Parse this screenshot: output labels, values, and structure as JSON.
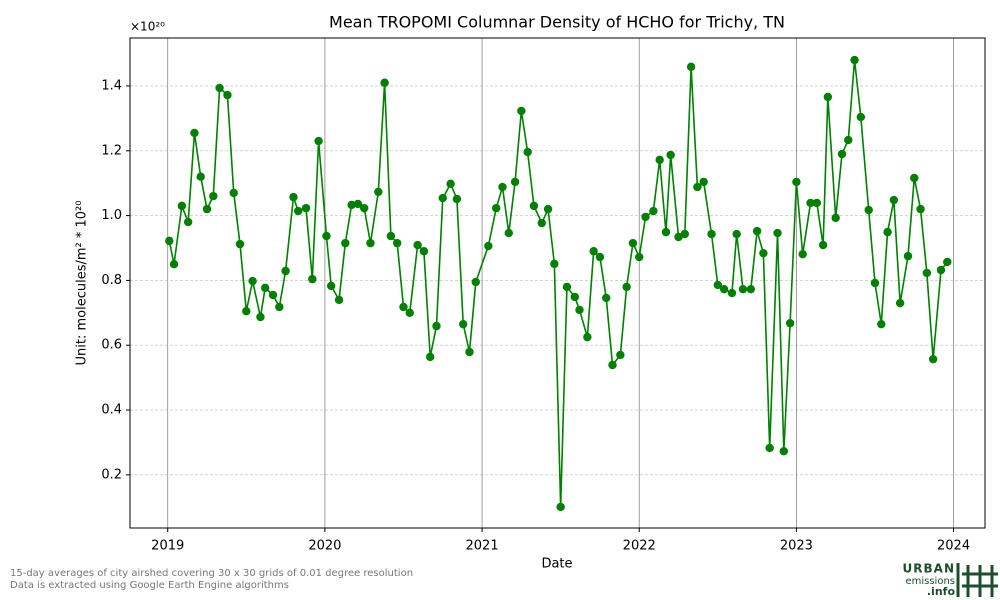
{
  "chart_data": {
    "type": "line",
    "title": "Mean TROPOMI Columnar Density of HCHO for Trichy, TN",
    "x_label": "Date",
    "y_label": "Unit: molecules/m² * 10²⁰",
    "y_offset_label": "×10²⁰",
    "color": "#008000",
    "grid": true,
    "x": [
      2019.01,
      2019.04,
      2019.09,
      2019.13,
      2019.17,
      2019.21,
      2019.25,
      2019.29,
      2019.33,
      2019.38,
      2019.42,
      2019.46,
      2019.5,
      2019.54,
      2019.59,
      2019.62,
      2019.67,
      2019.71,
      2019.75,
      2019.8,
      2019.83,
      2019.88,
      2019.92,
      2019.96,
      2020.01,
      2020.04,
      2020.09,
      2020.13,
      2020.17,
      2020.21,
      2020.25,
      2020.29,
      2020.34,
      2020.38,
      2020.42,
      2020.46,
      2020.5,
      2020.54,
      2020.59,
      2020.63,
      2020.67,
      2020.71,
      2020.75,
      2020.8,
      2020.84,
      2020.88,
      2020.92,
      2020.96,
      2021.04,
      2021.09,
      2021.13,
      2021.17,
      2021.21,
      2021.25,
      2021.29,
      2021.33,
      2021.38,
      2021.42,
      2021.46,
      2021.5,
      2021.54,
      2021.59,
      2021.62,
      2021.67,
      2021.71,
      2021.75,
      2021.79,
      2021.83,
      2021.88,
      2021.92,
      2021.96,
      2022.0,
      2022.04,
      2022.09,
      2022.13,
      2022.17,
      2022.2,
      2022.25,
      2022.29,
      2022.33,
      2022.37,
      2022.41,
      2022.46,
      2022.5,
      2022.54,
      2022.59,
      2022.62,
      2022.66,
      2022.71,
      2022.75,
      2022.79,
      2022.83,
      2022.88,
      2022.92,
      2022.96,
      2023.0,
      2023.04,
      2023.09,
      2023.13,
      2023.17,
      2023.2,
      2023.25,
      2023.29,
      2023.33,
      2023.37,
      2023.41,
      2023.46,
      2023.5,
      2023.54,
      2023.58,
      2023.62,
      2023.66,
      2023.71,
      2023.75,
      2023.79,
      2023.83,
      2023.87,
      2023.92,
      2023.96
    ],
    "values": [
      0.922,
      0.85,
      1.03,
      0.98,
      1.255,
      1.12,
      1.02,
      1.06,
      1.394,
      1.372,
      1.07,
      0.912,
      0.705,
      0.798,
      0.687,
      0.777,
      0.755,
      0.718,
      0.829,
      1.057,
      1.014,
      1.023,
      0.804,
      1.23,
      0.937,
      0.783,
      0.74,
      0.915,
      1.033,
      1.036,
      1.023,
      0.915,
      1.073,
      1.41,
      0.937,
      0.915,
      0.718,
      0.7,
      0.909,
      0.89,
      0.564,
      0.659,
      1.054,
      1.098,
      1.051,
      0.665,
      0.579,
      0.795,
      0.906,
      1.023,
      1.088,
      0.946,
      1.104,
      1.323,
      1.196,
      1.03,
      0.977,
      1.02,
      0.851,
      0.101,
      0.78,
      0.749,
      0.709,
      0.625,
      0.89,
      0.872,
      0.746,
      0.539,
      0.57,
      0.78,
      0.915,
      0.872,
      0.996,
      1.014,
      1.172,
      0.949,
      1.187,
      0.934,
      0.943,
      1.459,
      1.088,
      1.104,
      0.943,
      0.786,
      0.773,
      0.761,
      0.943,
      0.773,
      0.773,
      0.952,
      0.884,
      0.283,
      0.946,
      0.273,
      0.668,
      1.104,
      0.881,
      1.039,
      1.039,
      0.909,
      1.366,
      0.993,
      1.19,
      1.233,
      1.48,
      1.304,
      1.017,
      0.792,
      0.665,
      0.949,
      1.048,
      0.73,
      0.875,
      1.116,
      1.02,
      0.823,
      0.557,
      0.832,
      0.857
    ],
    "xlim": [
      2018.76,
      2024.2
    ],
    "ylim": [
      0.036,
      1.548
    ],
    "xticks": [
      2019,
      2020,
      2021,
      2022,
      2023,
      2024
    ],
    "yticks": [
      0.2,
      0.4,
      0.6,
      0.8,
      {
        "value": 1,
        "label": "1.0"
      },
      1.2,
      1.4
    ]
  },
  "footer": {
    "line1": "15-day averages of city airshed covering 30 x 30 grids of 0.01 degree resolution",
    "line2": "Data is extracted using Google Earth Engine algorithms"
  },
  "logo": {
    "line1": "URBAN",
    "line2": "emissions",
    "line3": ".info"
  }
}
